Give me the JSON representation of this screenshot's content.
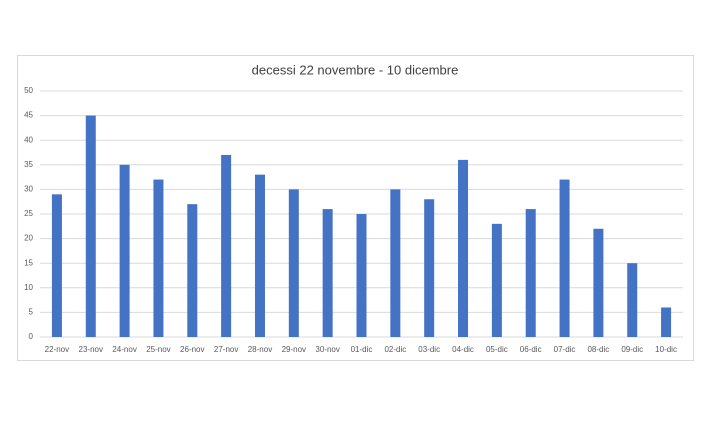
{
  "chart_data": {
    "type": "bar",
    "title": "decessi 22 novembre - 10 dicembre",
    "categories": [
      "22-nov",
      "23-nov",
      "24-nov",
      "25-nov",
      "26-nov",
      "27-nov",
      "28-nov",
      "29-nov",
      "30-nov",
      "01-dic",
      "02-dic",
      "03-dic",
      "04-dic",
      "05-dic",
      "06-dic",
      "07-dic",
      "08-dic",
      "09-dic",
      "10-dic"
    ],
    "values": [
      29,
      45,
      35,
      32,
      27,
      37,
      33,
      30,
      26,
      25,
      30,
      28,
      36,
      23,
      26,
      32,
      22,
      15,
      6
    ],
    "color": "#4472c4",
    "ylim": [
      0,
      50
    ],
    "yticks": [
      0,
      5,
      10,
      15,
      20,
      25,
      30,
      35,
      40,
      45,
      50
    ],
    "grid": true
  }
}
